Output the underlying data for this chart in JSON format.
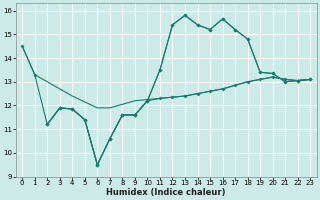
{
  "xlabel": "Humidex (Indice chaleur)",
  "xlim": [
    -0.5,
    23.5
  ],
  "ylim": [
    9,
    16.3
  ],
  "xticks": [
    0,
    1,
    2,
    3,
    4,
    5,
    6,
    7,
    8,
    9,
    10,
    11,
    12,
    13,
    14,
    15,
    16,
    17,
    18,
    19,
    20,
    21,
    22,
    23
  ],
  "yticks": [
    9,
    10,
    11,
    12,
    13,
    14,
    15,
    16
  ],
  "background_color": "#cceae7",
  "grid_color": "#ffffff",
  "line_color": "#1a7a6e",
  "lines": [
    {
      "x": [
        0,
        1,
        2,
        3,
        4,
        5,
        6,
        7,
        8,
        9,
        10,
        11,
        12,
        13,
        14,
        15,
        16,
        17,
        18,
        19,
        20,
        21,
        22,
        23
      ],
      "y": [
        14.5,
        13.3,
        13.0,
        12.7,
        12.4,
        12.15,
        11.9,
        11.9,
        12.05,
        12.2,
        12.25,
        12.3,
        12.35,
        12.4,
        12.5,
        12.6,
        12.7,
        12.85,
        13.0,
        13.1,
        13.2,
        13.1,
        13.05,
        13.1
      ],
      "marker": false
    },
    {
      "x": [
        0,
        1,
        2,
        3,
        4,
        5,
        6,
        7,
        8,
        9,
        10,
        11,
        12,
        13,
        14,
        15,
        16,
        17,
        18,
        19,
        20,
        21,
        22,
        23
      ],
      "y": [
        14.5,
        13.3,
        11.2,
        11.9,
        11.85,
        11.4,
        9.5,
        10.6,
        11.6,
        11.6,
        12.2,
        13.5,
        15.4,
        15.8,
        15.4,
        15.2,
        15.65,
        15.2,
        14.8,
        13.4,
        13.35,
        13.0,
        13.05,
        13.1
      ],
      "marker": true
    },
    {
      "x": [
        2,
        3,
        4,
        5,
        6,
        7,
        8,
        9,
        10,
        11,
        12,
        13,
        14,
        15,
        16,
        17,
        18,
        19,
        20,
        21,
        22,
        23
      ],
      "y": [
        11.2,
        11.9,
        11.85,
        11.4,
        9.5,
        10.6,
        11.6,
        11.6,
        12.2,
        12.3,
        12.35,
        12.4,
        12.5,
        12.6,
        12.7,
        12.85,
        13.0,
        13.1,
        13.2,
        13.1,
        13.05,
        13.1
      ],
      "marker": true
    },
    {
      "x": [
        2,
        3,
        4,
        5,
        6,
        7,
        8,
        9,
        10,
        11,
        12,
        13,
        14,
        15,
        16,
        17,
        18,
        19,
        20,
        21,
        22,
        23
      ],
      "y": [
        11.2,
        11.9,
        11.85,
        11.4,
        9.5,
        10.6,
        11.6,
        11.6,
        12.2,
        13.5,
        15.4,
        15.8,
        15.4,
        15.2,
        15.65,
        15.2,
        14.8,
        13.4,
        13.35,
        13.0,
        13.05,
        13.1
      ],
      "marker": true
    }
  ]
}
